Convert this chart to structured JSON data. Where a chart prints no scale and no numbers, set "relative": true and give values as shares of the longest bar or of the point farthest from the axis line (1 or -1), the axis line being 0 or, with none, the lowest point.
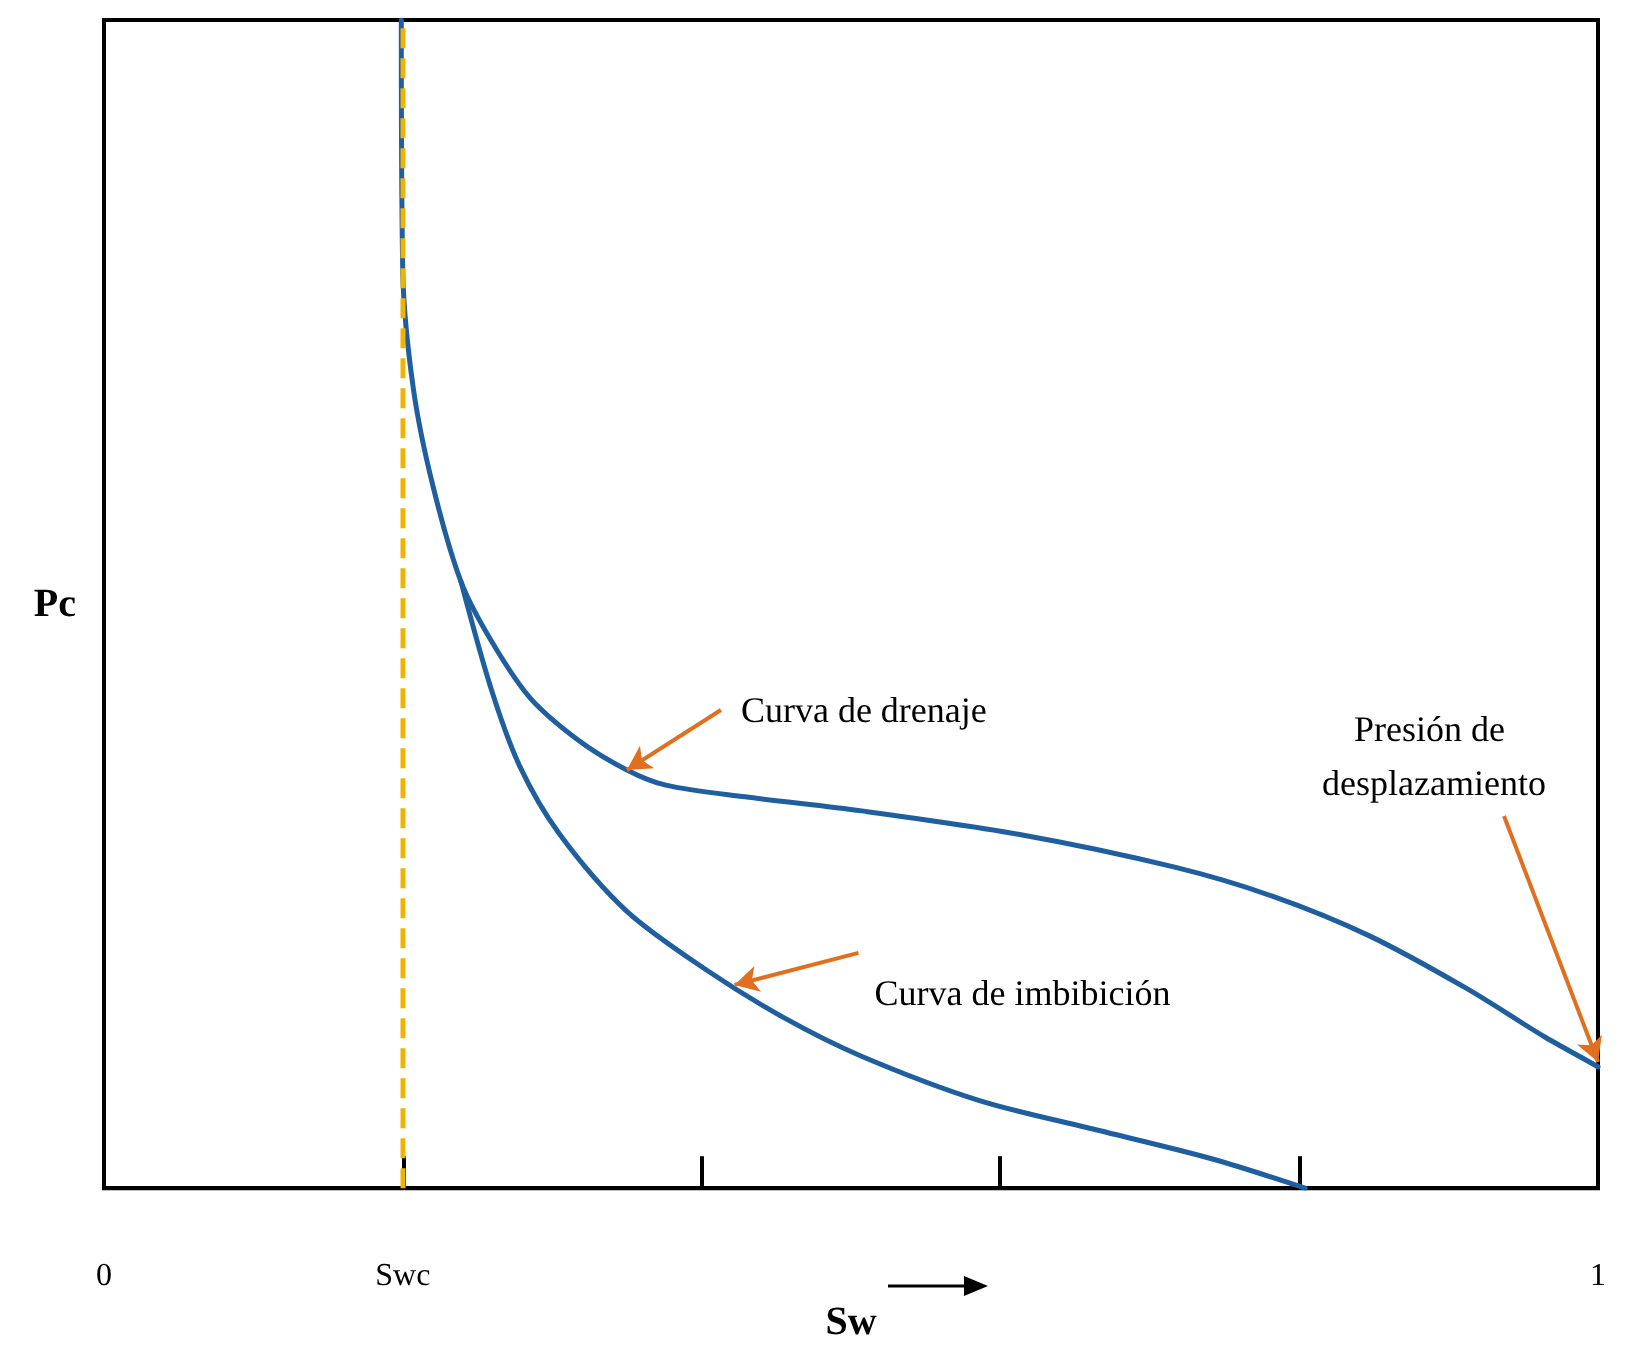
{
  "chart_data": {
    "type": "line",
    "relative": true,
    "xlabel": "Sw",
    "ylabel": "Pc",
    "xlim": [
      0,
      1
    ],
    "xticks": [
      0,
      {
        "value": 0.2,
        "label": "Swc"
      },
      {
        "value": 0.4,
        "label": null
      },
      {
        "value": 0.6,
        "label": null
      },
      {
        "value": 0.8,
        "label": null
      },
      1
    ],
    "series": [
      {
        "color": "#1f5fa0",
        "x": [
          0.199,
          0.2,
          0.207,
          0.22,
          0.239,
          0.259,
          0.285,
          0.318,
          0.35,
          0.376,
          0.429,
          0.507,
          0.612,
          0.716,
          0.782,
          0.847,
          0.912,
          0.965,
          1.0
        ],
        "values": [
          1.0,
          0.784,
          0.685,
          0.602,
          0.519,
          0.469,
          0.42,
          0.383,
          0.358,
          0.345,
          0.335,
          0.323,
          0.303,
          0.275,
          0.25,
          0.216,
          0.171,
          0.129,
          0.104
        ]
      },
      {
        "color": "#1f5fa0",
        "x": [
          0.239,
          0.259,
          0.278,
          0.305,
          0.35,
          0.403,
          0.455,
          0.507,
          0.586,
          0.664,
          0.742,
          0.804
        ],
        "values": [
          0.519,
          0.428,
          0.362,
          0.303,
          0.237,
          0.187,
          0.146,
          0.113,
          0.075,
          0.05,
          0.025,
          0
        ]
      }
    ],
    "ref_lines": [
      {
        "axis": "x",
        "value": 0.2,
        "color": "#f0b400",
        "line_style": "dashed"
      }
    ],
    "annotations": [
      {
        "text": "Curva de drenaje",
        "x": 0.35,
        "y": 0.358
      },
      {
        "text": "Curva de imbibición",
        "x": 0.422,
        "y": 0.174
      },
      {
        "text": "Presión de desplazamiento",
        "x": 1.0,
        "y": 0.108
      }
    ],
    "grid": false,
    "marker": "none",
    "line_style": "solid"
  }
}
